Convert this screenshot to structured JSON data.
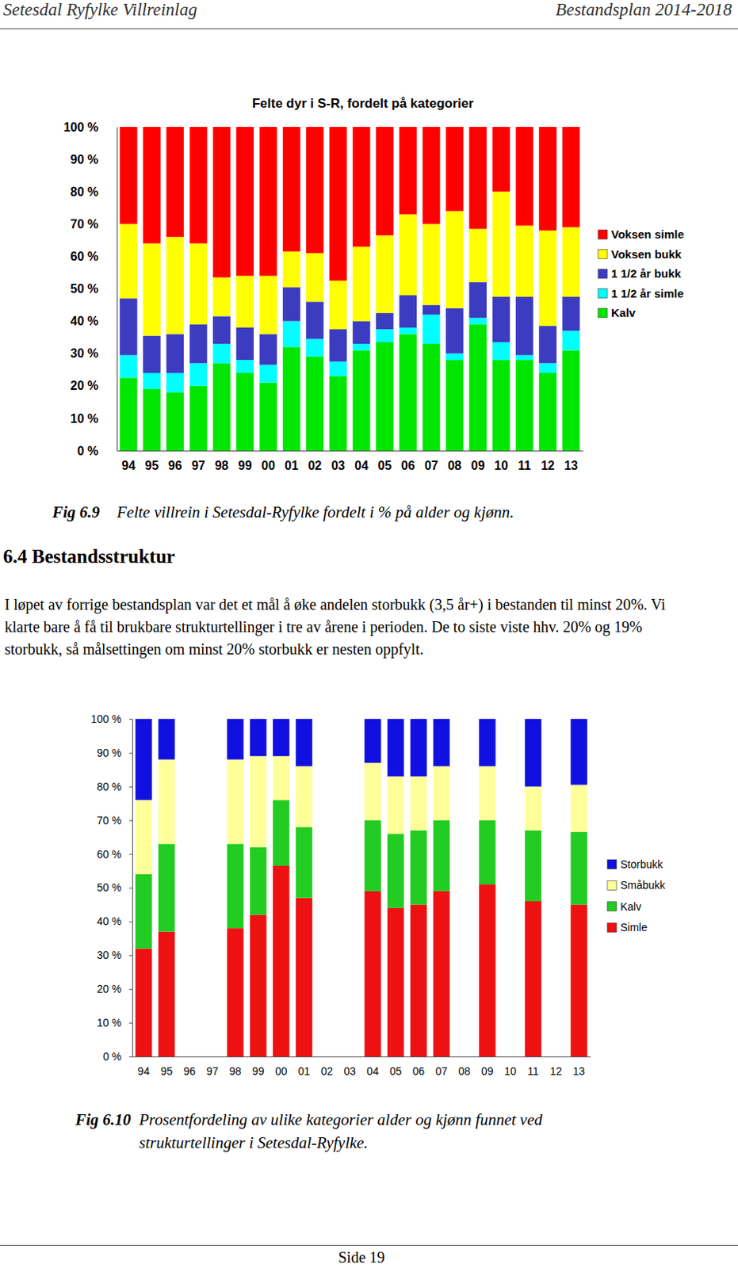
{
  "header": {
    "left": "Setesdal Ryfylke Villreinlag",
    "right": "Bestandsplan 2014-2018"
  },
  "chart_data": [
    {
      "type": "bar",
      "title": "Felte dyr i S-R, fordelt på kategorier",
      "stacked": true,
      "legend": "right",
      "grid": false,
      "categories": [
        "94",
        "95",
        "96",
        "97",
        "98",
        "99",
        "00",
        "01",
        "02",
        "03",
        "04",
        "05",
        "06",
        "07",
        "08",
        "09",
        "10",
        "11",
        "12",
        "13"
      ],
      "ylim": [
        0,
        100
      ],
      "yticks": [
        {
          "value": 0,
          "label": "0 %"
        },
        {
          "value": 10,
          "label": "10 %"
        },
        {
          "value": 20,
          "label": "20 %"
        },
        {
          "value": 30,
          "label": "30 %"
        },
        {
          "value": 40,
          "label": "40 %"
        },
        {
          "value": 50,
          "label": "50 %"
        },
        {
          "value": 60,
          "label": "60 %"
        },
        {
          "value": 70,
          "label": "70 %"
        },
        {
          "value": 80,
          "label": "80 %"
        },
        {
          "value": 90,
          "label": "90 %"
        },
        {
          "value": 100,
          "label": "100 %"
        }
      ],
      "series": [
        {
          "name": "Kalv",
          "color": "#00e600",
          "values": [
            22.5,
            19,
            18,
            20,
            27,
            24,
            21,
            32,
            29,
            23,
            31,
            33.5,
            36,
            33,
            28,
            39,
            28,
            28,
            24,
            31
          ]
        },
        {
          "name": "1 1/2 år simle",
          "color": "#00ffff",
          "values": [
            7,
            5,
            6,
            7,
            6,
            4,
            5.5,
            8,
            5.5,
            4.5,
            2,
            4,
            2,
            9,
            2,
            2,
            5.5,
            1.5,
            3,
            6
          ]
        },
        {
          "name": "1 1/2 år bukk",
          "color": "#3c3cc0",
          "values": [
            17.5,
            11.5,
            12,
            12,
            8.5,
            10,
            9.5,
            10.5,
            11.5,
            10,
            7,
            5,
            10,
            3,
            14,
            11,
            14,
            18,
            11.5,
            10.5
          ]
        },
        {
          "name": "Voksen bukk",
          "color": "#ffff00",
          "values": [
            23,
            28.5,
            30,
            25,
            12,
            16,
            18,
            11,
            15,
            15,
            23,
            24,
            25,
            25,
            30,
            16.5,
            32.5,
            22,
            29.5,
            21.5
          ]
        },
        {
          "name": "Voksen simle",
          "color": "#ff0000",
          "values": [
            30,
            36,
            34,
            36,
            46.5,
            46,
            46,
            38.5,
            39,
            47.5,
            37,
            33.5,
            27,
            30,
            26,
            31.5,
            20,
            30.5,
            32,
            31
          ]
        }
      ]
    },
    {
      "type": "bar",
      "stacked": true,
      "legend": "right",
      "grid": false,
      "categories": [
        "94",
        "95",
        "96",
        "97",
        "98",
        "99",
        "00",
        "01",
        "02",
        "03",
        "04",
        "05",
        "06",
        "07",
        "08",
        "09",
        "10",
        "11",
        "12",
        "13"
      ],
      "ylim": [
        0,
        100
      ],
      "yticks": [
        {
          "value": 0,
          "label": "0 %"
        },
        {
          "value": 10,
          "label": "10 %"
        },
        {
          "value": 20,
          "label": "20 %"
        },
        {
          "value": 30,
          "label": "30 %"
        },
        {
          "value": 40,
          "label": "40 %"
        },
        {
          "value": 50,
          "label": "50 %"
        },
        {
          "value": 60,
          "label": "60 %"
        },
        {
          "value": 70,
          "label": "70 %"
        },
        {
          "value": 80,
          "label": "80 %"
        },
        {
          "value": 90,
          "label": "90 %"
        },
        {
          "value": 100,
          "label": "100 %"
        }
      ],
      "series": [
        {
          "name": "Simle",
          "color": "#ee1111",
          "values": [
            32,
            37,
            null,
            null,
            38,
            42,
            56.5,
            47,
            null,
            null,
            49,
            44,
            45,
            49,
            null,
            51,
            null,
            46,
            null,
            45
          ]
        },
        {
          "name": "Kalv",
          "color": "#22cc22",
          "values": [
            22,
            26,
            null,
            null,
            25,
            20,
            19.5,
            21,
            null,
            null,
            21,
            22,
            22,
            21,
            null,
            19,
            null,
            21,
            null,
            21.5
          ]
        },
        {
          "name": "Småbukk",
          "color": "#ffff99",
          "values": [
            22,
            25,
            null,
            null,
            25,
            27,
            13,
            18,
            null,
            null,
            17,
            17,
            16,
            16,
            null,
            16,
            null,
            13,
            null,
            14
          ]
        },
        {
          "name": "Storbukk",
          "color": "#1010e0",
          "values": [
            24,
            12,
            null,
            null,
            12,
            11,
            11,
            14,
            null,
            null,
            13,
            17,
            17,
            14,
            null,
            14,
            null,
            20,
            null,
            19.5
          ]
        }
      ]
    }
  ],
  "figure_captions": [
    {
      "number": "Fig 6.9",
      "text": "Felte villrein i Setesdal-Ryfylke fordelt i % på alder og kjønn."
    },
    {
      "number": "Fig 6.10",
      "text": "Prosentfordeling av ulike kategorier alder og kjønn funnet ved strukturtellinger i Setesdal-Ryfylke."
    }
  ],
  "section": {
    "heading": "6.4 Bestandsstruktur",
    "paragraph": "I løpet av forrige bestandsplan var det et mål å øke andelen storbukk (3,5 år+) i bestanden til minst 20%. Vi klarte bare å få til brukbare strukturtellinger i tre av årene i perioden. De to siste viste hhv. 20% og 19% storbukk, så målsettingen om minst 20% storbukk er nesten oppfylt."
  },
  "footer": {
    "page": "Side 19"
  }
}
